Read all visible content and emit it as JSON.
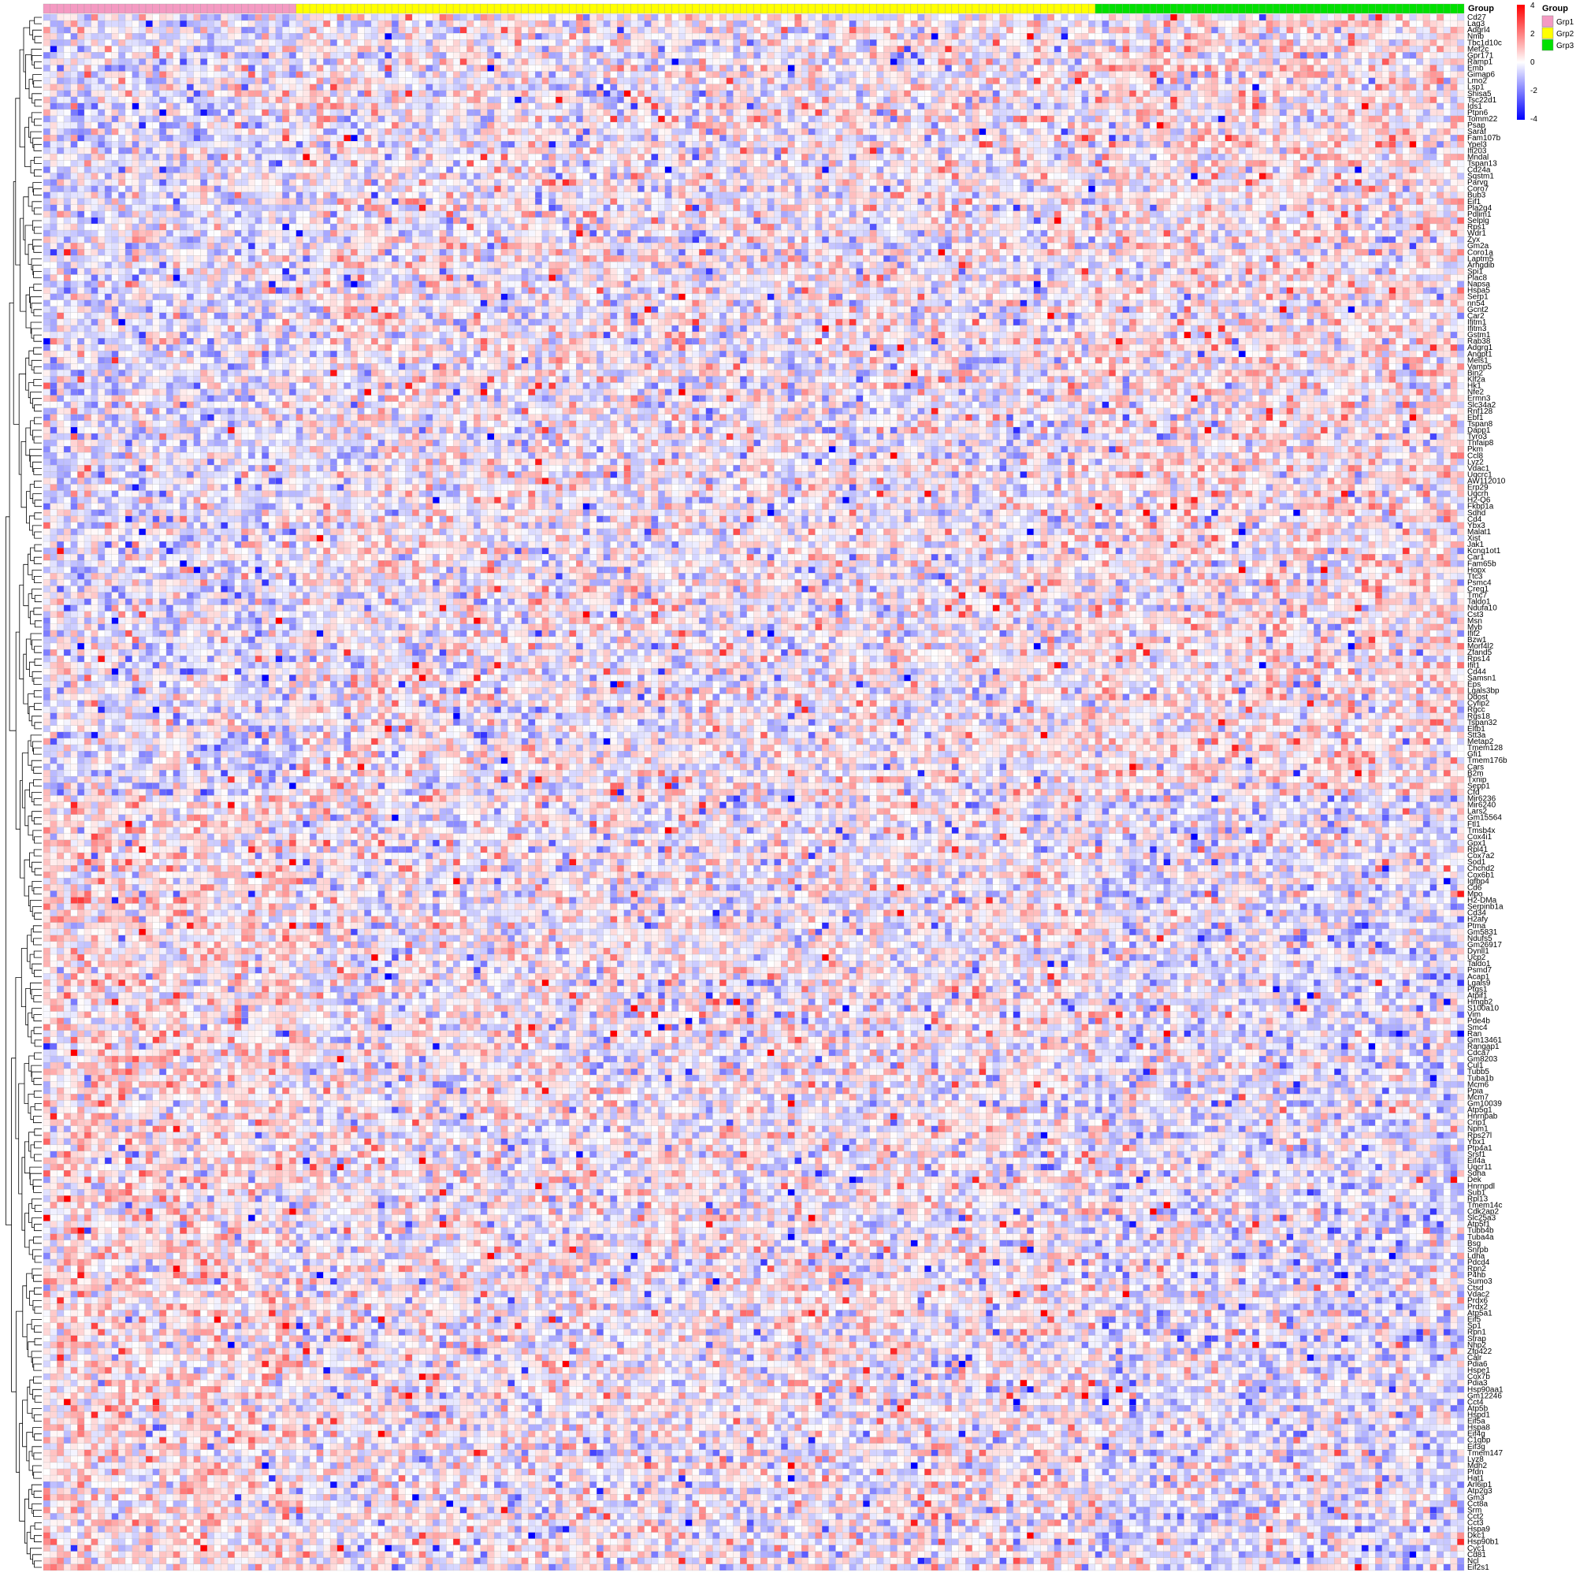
{
  "chart_data": {
    "type": "heatmap",
    "title": "",
    "annotation_title": "Group",
    "groups": [
      {
        "name": "Grp1",
        "color": "#F49AC2",
        "n_samples": 37
      },
      {
        "name": "Grp2",
        "color": "#FFFF00",
        "n_samples": 117
      },
      {
        "name": "Grp3",
        "color": "#00E000",
        "n_samples": 54
      }
    ],
    "color_scale": {
      "low": "#0000FF",
      "mid": "#FFFFFF",
      "high": "#FF0000",
      "min": -4,
      "max": 4,
      "ticks": [
        "4",
        "2",
        "0",
        "-2",
        "-4"
      ]
    },
    "row_dendrogram": "left",
    "grid": true,
    "legend_placement": "top-right",
    "row_labels": [
      "Cd27",
      "Lag3",
      "Adgrl4",
      "Nmb",
      "Tbc1d10c",
      "Mef2c",
      "Gpr171",
      "Ramp1",
      "Emb",
      "Gimap6",
      "Lmo2",
      "Lsp1",
      "Shisa5",
      "Tsc22d1",
      "Ids1",
      "Ptpn6",
      "Tomm22",
      "Psap",
      "Saraf",
      "Fam107b",
      "Ypel3",
      "Ifi203",
      "Mndal",
      "Tspan13",
      "Cd24a",
      "Sqstm1",
      "Parvg",
      "Coro7",
      "Bub3",
      "Eif1",
      "Pla2g4",
      "Pdlim1",
      "Selplg",
      "Rps1",
      "Wdr1",
      "Zyx",
      "Gm2a",
      "Coro1a",
      "Laptm5",
      "Arhgdib",
      "Spi1",
      "Plac8",
      "Napsa",
      "Hspa5",
      "Serp1",
      "nn54",
      "Gcnt2",
      "Car2",
      "Ifitm1",
      "Ifitm3",
      "Gstm1",
      "Rab38",
      "Adgrg1",
      "Angpt1",
      "Meis1",
      "Vamp5",
      "Bin2",
      "Klf2a",
      "Hk1",
      "Nfe2",
      "Ermn3",
      "Slc34a2",
      "Rnf128",
      "Ebf1",
      "Tspan8",
      "Dapp1",
      "Tyro3",
      "Tnfaip8",
      "Pkm",
      "Ccl8",
      "Lyz2",
      "Vdac1",
      "Uqcrc1",
      "AW112010",
      "Erp29",
      "Uqcrh",
      "H2-Q6",
      "Fkbp1a",
      "Sdhd",
      "Cd4",
      "Ybx3",
      "Malat1",
      "Xist",
      "Jak1",
      "Kcnq1ot1",
      "Car1",
      "Fam65b",
      "Hopx",
      "Ttc3",
      "Psmc4",
      "Creg1",
      "Tmc7",
      "Taldo1",
      "Ndufa10",
      "Cst3",
      "Msn",
      "Myb",
      "Ifit2",
      "Bzw1",
      "Morf4l2",
      "Zfand5",
      "Rps14",
      "Ifit1",
      "Cd44",
      "Samsn1",
      "Eps",
      "Lgals3bp",
      "Ddost",
      "Cyfip2",
      "Rgcc",
      "Rgs18",
      "Tspan32",
      "Eltb1",
      "Stt3a",
      "Metap2",
      "Tmem128",
      "Gfi1",
      "Tmem176b",
      "Cars",
      "B2m",
      "Txnip",
      "Sepp1",
      "Cfd",
      "Mir6236",
      "Mir6240",
      "Lars2",
      "Gm15564",
      "Ftl1",
      "Tmsb4x",
      "Cox4i1",
      "Gpx1",
      "Rpl41",
      "Cox7a2",
      "Sod1",
      "Chchd2",
      "Cox6b1",
      "Igfbp4",
      "Cd6",
      "Mpo",
      "H2-DMa",
      "Serpinb1a",
      "Cd34",
      "H2afy",
      "Ptma",
      "Gm5831",
      "Ndufs5",
      "Gm26917",
      "Dynll1",
      "Ucp2",
      "Taldo1",
      "Psmd7",
      "Acap1",
      "Lgals9",
      "Ptgs1",
      "Atpif1",
      "Hmgb2",
      "S100a10",
      "Vim",
      "Pde4b",
      "Smc4",
      "Ran",
      "Gm13461",
      "Rangap1",
      "Cdca7",
      "Gm8203",
      "Cul1",
      "Tubb5",
      "Tuba1b",
      "Mcm6",
      "Ppia",
      "Mcm7",
      "Gm10039",
      "Atp5g1",
      "Hnrnpab",
      "Crip1",
      "Npm1",
      "Rps27l",
      "Ybx1",
      "Ptp4a1",
      "Srsf1",
      "Eif4a",
      "Uqcr11",
      "Sdha",
      "Dek",
      "Hnrnpdl",
      "Sub1",
      "Rpl13",
      "Tmem14c",
      "Cdk2ap2",
      "Slc25a3",
      "Atp5f1",
      "Tubb4b",
      "Tuba4a",
      "Bsg",
      "Snrpb",
      "Ldha",
      "Pdcd4",
      "Rpn2",
      "P4hb",
      "Sumo3",
      "Ctsd",
      "Vdac2",
      "Prdx6",
      "Prdx2",
      "Atp5a1",
      "Eif5",
      "Sp1",
      "Rpn1",
      "Strap",
      "Nhp2",
      "Zfp422",
      "Calr",
      "Pdia6",
      "Hspe1",
      "Cox7b",
      "Pdia3",
      "Hsp90aa1",
      "Gm12246",
      "Cct4",
      "Atp5b",
      "Hspd1",
      "Eif5a",
      "Hspa8",
      "Eif4g",
      "C1qbp",
      "Eif3g",
      "Tmem147",
      "Lyz8",
      "Mdh2",
      "Pfdn",
      "Hat1",
      "Arl6ip1",
      "Atp2g3",
      "Gm3",
      "Cct8a",
      "Srm",
      "Cct2",
      "Cct3",
      "Hspa9",
      "Dkc1",
      "Hsp90b1",
      "Cyc1",
      "Cd81",
      "Ncl",
      "Eif2s1"
    ]
  }
}
